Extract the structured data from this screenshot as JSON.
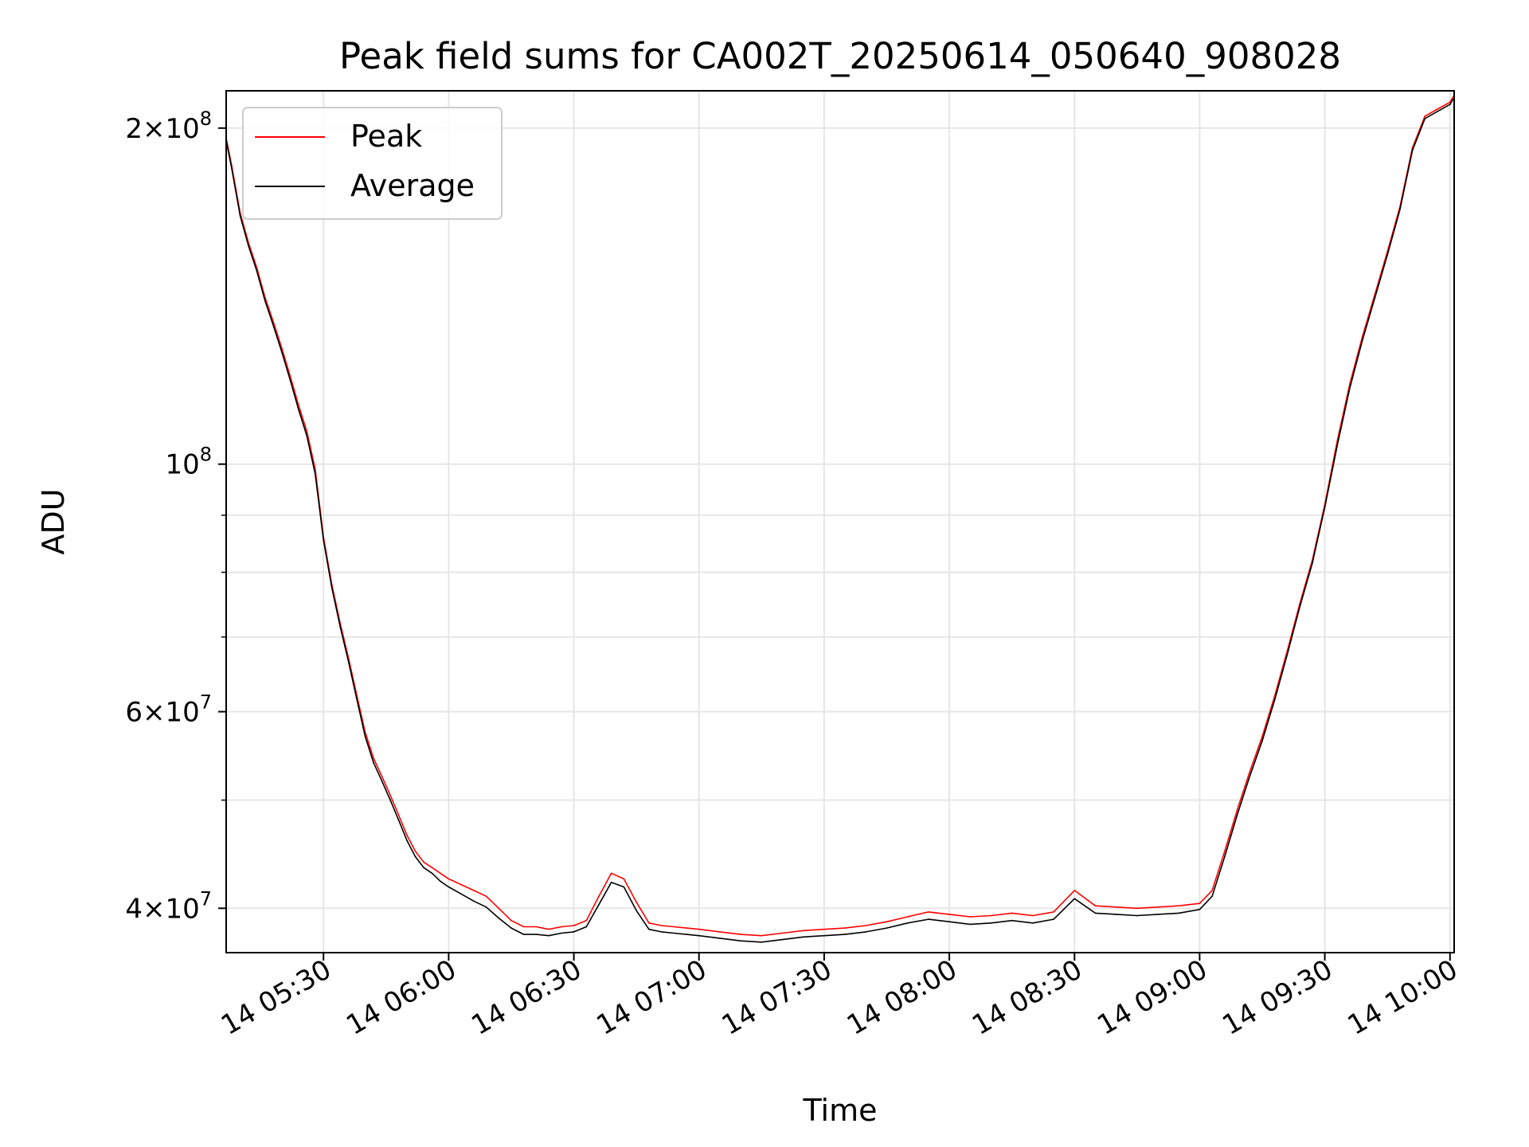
{
  "chart_data": {
    "type": "line",
    "title": "Peak field sums for CA002T_20250614_050640_908028",
    "xlabel": "Time",
    "ylabel": "ADU",
    "xscale": "time",
    "yscale": "log",
    "xlim": [
      "2025-06-14 05:06:40",
      "2025-06-14 10:01:00"
    ],
    "ylim": [
      36500000,
      216000000
    ],
    "grid": true,
    "legend": {
      "position": "top-left",
      "entries": [
        "Peak",
        "Average"
      ]
    },
    "x_ticks": [
      "05:30",
      "06:00",
      "06:30",
      "07:00",
      "07:30",
      "08:00",
      "08:30",
      "09:00",
      "09:30",
      "10:00"
    ],
    "x_tick_labels": [
      "14 05:30",
      "14 06:00",
      "14 06:30",
      "14 07:00",
      "14 07:30",
      "14 08:00",
      "14 08:30",
      "14 09:00",
      "14 09:30",
      "14 10:00"
    ],
    "y_ticks": [
      {
        "value": 200000000,
        "mantissa": "2",
        "exponent": "8"
      },
      {
        "value": 100000000,
        "mantissa": "",
        "exponent": "8"
      },
      {
        "value": 60000000,
        "mantissa": "6",
        "exponent": "7"
      },
      {
        "value": 40000000,
        "mantissa": "4",
        "exponent": "7"
      }
    ],
    "y_minor_ticks": [
      90000000,
      80000000,
      70000000,
      50000000
    ],
    "x_unit_note": "x values are clock times on 2025-06-14",
    "series": [
      {
        "name": "Peak",
        "color": "#ff0000",
        "x": [
          "05:06:40",
          "05:08",
          "05:10",
          "05:12",
          "05:14",
          "05:16",
          "05:18",
          "05:20",
          "05:22",
          "05:24",
          "05:26",
          "05:28",
          "05:30",
          "05:32",
          "05:34",
          "05:36",
          "05:38",
          "05:40",
          "05:42",
          "05:44",
          "05:46",
          "05:48",
          "05:50",
          "05:52",
          "05:54",
          "05:56",
          "05:58",
          "06:00",
          "06:03",
          "06:06",
          "06:09",
          "06:12",
          "06:15",
          "06:18",
          "06:21",
          "06:24",
          "06:27",
          "06:30",
          "06:33",
          "06:36",
          "06:39",
          "06:42",
          "06:45",
          "06:48",
          "06:51",
          "06:54",
          "06:57",
          "07:00",
          "07:05",
          "07:10",
          "07:15",
          "07:20",
          "07:25",
          "07:30",
          "07:35",
          "07:40",
          "07:45",
          "07:50",
          "07:55",
          "08:00",
          "08:05",
          "08:10",
          "08:15",
          "08:20",
          "08:25",
          "08:30",
          "08:35",
          "08:40",
          "08:45",
          "08:50",
          "08:55",
          "09:00",
          "09:03",
          "09:06",
          "09:09",
          "09:12",
          "09:15",
          "09:18",
          "09:21",
          "09:24",
          "09:27",
          "09:30",
          "09:33",
          "09:36",
          "09:39",
          "09:42",
          "09:45",
          "09:48",
          "09:51",
          "09:54",
          "09:57",
          "10:00",
          "10:01"
        ],
        "values": [
          196000000,
          185000000,
          168000000,
          158000000,
          150000000,
          141000000,
          134000000,
          127000000,
          120000000,
          113000000,
          107000000,
          99000000,
          86000000,
          78000000,
          72000000,
          67000000,
          62000000,
          57500000,
          54500000,
          52500000,
          50500000,
          48500000,
          46500000,
          45000000,
          44000000,
          43500000,
          43000000,
          42500000,
          42000000,
          41500000,
          41000000,
          40000000,
          39000000,
          38500000,
          38500000,
          38300000,
          38500000,
          38600000,
          39000000,
          41000000,
          43000000,
          42500000,
          40500000,
          38800000,
          38600000,
          38500000,
          38400000,
          38300000,
          38100000,
          37900000,
          37800000,
          38000000,
          38200000,
          38300000,
          38400000,
          38600000,
          38900000,
          39300000,
          39700000,
          39500000,
          39300000,
          39400000,
          39600000,
          39400000,
          39700000,
          41500000,
          40200000,
          40100000,
          40000000,
          40100000,
          40200000,
          40400000,
          41500000,
          45000000,
          49000000,
          53000000,
          57000000,
          62000000,
          68000000,
          75000000,
          82000000,
          92000000,
          105000000,
          118000000,
          130000000,
          142000000,
          155000000,
          170000000,
          192000000,
          205000000,
          208000000,
          211000000,
          214000000
        ]
      },
      {
        "name": "Average",
        "color": "#000000",
        "x": [
          "05:06:40",
          "05:08",
          "05:10",
          "05:12",
          "05:14",
          "05:16",
          "05:18",
          "05:20",
          "05:22",
          "05:24",
          "05:26",
          "05:28",
          "05:30",
          "05:32",
          "05:34",
          "05:36",
          "05:38",
          "05:40",
          "05:42",
          "05:44",
          "05:46",
          "05:48",
          "05:50",
          "05:52",
          "05:54",
          "05:56",
          "05:58",
          "06:00",
          "06:03",
          "06:06",
          "06:09",
          "06:12",
          "06:15",
          "06:18",
          "06:21",
          "06:24",
          "06:27",
          "06:30",
          "06:33",
          "06:36",
          "06:39",
          "06:42",
          "06:45",
          "06:48",
          "06:51",
          "06:54",
          "06:57",
          "07:00",
          "07:05",
          "07:10",
          "07:15",
          "07:20",
          "07:25",
          "07:30",
          "07:35",
          "07:40",
          "07:45",
          "07:50",
          "07:55",
          "08:00",
          "08:05",
          "08:10",
          "08:15",
          "08:20",
          "08:25",
          "08:30",
          "08:35",
          "08:40",
          "08:45",
          "08:50",
          "08:55",
          "09:00",
          "09:03",
          "09:06",
          "09:09",
          "09:12",
          "09:15",
          "09:18",
          "09:21",
          "09:24",
          "09:27",
          "09:30",
          "09:33",
          "09:36",
          "09:39",
          "09:42",
          "09:45",
          "09:48",
          "09:51",
          "09:54",
          "09:57",
          "10:00",
          "10:01"
        ],
        "values": [
          195000000,
          184000000,
          167000000,
          157000000,
          149000000,
          140000000,
          133000000,
          126000000,
          119000000,
          112000000,
          106000000,
          98000000,
          85500000,
          77500000,
          71500000,
          66500000,
          61500000,
          57000000,
          54000000,
          52000000,
          50000000,
          48000000,
          46000000,
          44500000,
          43500000,
          43000000,
          42300000,
          41800000,
          41200000,
          40600000,
          40100000,
          39200000,
          38400000,
          37900000,
          37900000,
          37800000,
          38000000,
          38100000,
          38500000,
          40300000,
          42200000,
          41800000,
          39800000,
          38300000,
          38100000,
          38000000,
          37900000,
          37800000,
          37600000,
          37400000,
          37300000,
          37500000,
          37700000,
          37800000,
          37900000,
          38100000,
          38400000,
          38800000,
          39100000,
          38900000,
          38700000,
          38800000,
          39000000,
          38800000,
          39100000,
          40800000,
          39600000,
          39500000,
          39400000,
          39500000,
          39600000,
          39900000,
          41000000,
          44500000,
          48500000,
          52500000,
          56500000,
          61500000,
          67500000,
          74500000,
          81500000,
          91500000,
          104000000,
          117000000,
          129000000,
          141000000,
          154000000,
          169000000,
          191000000,
          204000000,
          207000000,
          210000000,
          213000000
        ]
      }
    ]
  }
}
